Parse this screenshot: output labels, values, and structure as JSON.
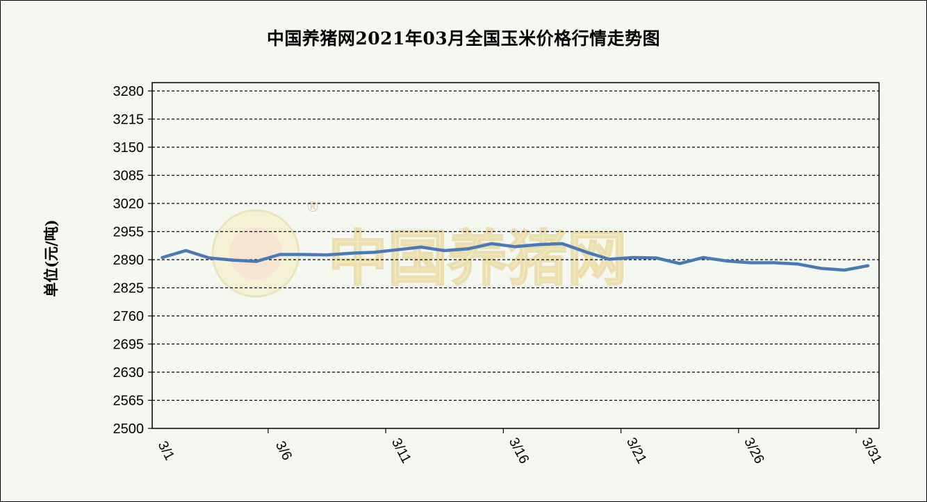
{
  "chart_data": {
    "type": "line",
    "title": "中国养猪网2021年03月全国玉米价格行情走势图",
    "xlabel": "",
    "ylabel": "单位(元/吨)",
    "ylim": [
      2500,
      3280
    ],
    "yticks": [
      3280,
      3215,
      3150,
      3085,
      3020,
      2955,
      2890,
      2825,
      2760,
      2695,
      2630,
      2565,
      2500
    ],
    "xtick_labels": [
      "3/1",
      "3/6",
      "3/11",
      "3/16",
      "3/21",
      "3/26",
      "3/31"
    ],
    "grid": "horizontal dashed",
    "series": [
      {
        "color": "#4a7ab5",
        "x": [
          "3/1",
          "3/2",
          "3/3",
          "3/4",
          "3/5",
          "3/6",
          "3/7",
          "3/8",
          "3/9",
          "3/10",
          "3/11",
          "3/12",
          "3/13",
          "3/14",
          "3/15",
          "3/16",
          "3/17",
          "3/18",
          "3/19",
          "3/20",
          "3/21",
          "3/22",
          "3/23",
          "3/24",
          "3/25",
          "3/26",
          "3/27",
          "3/28",
          "3/29",
          "3/30",
          "3/31"
        ],
        "values": [
          2895,
          2911,
          2894,
          2889,
          2886,
          2902,
          2902,
          2901,
          2905,
          2907,
          2913,
          2919,
          2911,
          2915,
          2927,
          2920,
          2925,
          2927,
          2908,
          2891,
          2895,
          2894,
          2881,
          2895,
          2887,
          2883,
          2883,
          2880,
          2870,
          2866,
          2876
        ]
      }
    ]
  },
  "watermark": {
    "brand_text": "中国养猪网",
    "registered_mark": "®"
  }
}
